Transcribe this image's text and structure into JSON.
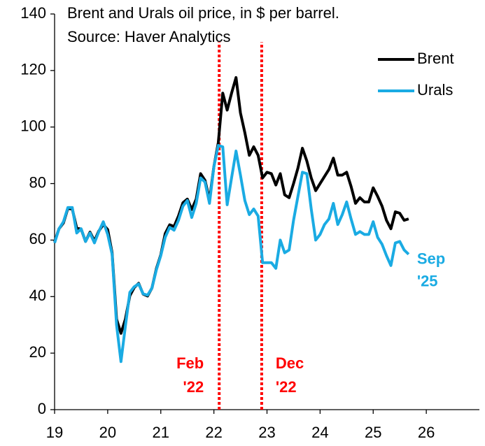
{
  "chart_data": {
    "type": "line",
    "title": "Brent and Urals oil price, in $ per barrel.",
    "subtitle": "Source: Haver Analytics",
    "x": [
      19,
      19.083,
      19.167,
      19.25,
      19.333,
      19.417,
      19.5,
      19.583,
      19.667,
      19.75,
      19.833,
      19.917,
      20,
      20.083,
      20.167,
      20.25,
      20.333,
      20.417,
      20.5,
      20.583,
      20.667,
      20.75,
      20.833,
      20.917,
      21,
      21.083,
      21.167,
      21.25,
      21.333,
      21.417,
      21.5,
      21.583,
      21.667,
      21.75,
      21.833,
      21.917,
      22,
      22.083,
      22.167,
      22.25,
      22.333,
      22.417,
      22.5,
      22.583,
      22.667,
      22.75,
      22.833,
      22.917,
      23,
      23.083,
      23.167,
      23.25,
      23.333,
      23.417,
      23.5,
      23.583,
      23.667,
      23.75,
      23.833,
      23.917,
      24,
      24.083,
      24.167,
      24.25,
      24.333,
      24.417,
      24.5,
      24.583,
      24.667,
      24.75,
      24.833,
      24.917,
      25,
      25.083,
      25.167,
      25.25,
      25.333,
      25.417,
      25.5,
      25.583,
      25.667
    ],
    "series": [
      {
        "name": "Brent",
        "color": "#000000",
        "values": [
          59.4,
          64,
          66.1,
          71.2,
          71,
          64.2,
          63.9,
          59.5,
          62.8,
          59.7,
          63.2,
          65.5,
          63.7,
          55.5,
          32,
          27,
          32,
          40.3,
          43.2,
          44.7,
          40.9,
          40.2,
          43,
          49.9,
          54.8,
          62.3,
          65.4,
          64.8,
          68.5,
          73.2,
          74.5,
          70.8,
          74.5,
          83.5,
          81.1,
          74.2,
          86,
          94.5,
          112,
          106,
          112,
          117.5,
          105,
          98,
          90,
          93,
          90,
          82,
          84,
          83.5,
          79.5,
          83.5,
          76,
          75,
          80,
          85.5,
          92.5,
          88,
          82,
          77.5,
          80,
          82.5,
          85,
          89,
          83,
          83,
          84,
          79,
          73,
          75,
          73.5,
          73.5,
          78.5,
          75.5,
          72,
          67,
          64,
          70,
          69.5,
          67,
          67.5
        ]
      },
      {
        "name": "Urals",
        "color": "#1aabe3",
        "end_label": [
          "Sep",
          "'25"
        ],
        "values": [
          59,
          64,
          66.5,
          71.5,
          71.5,
          62.5,
          64,
          59.5,
          62.5,
          59,
          63,
          66.5,
          62,
          55,
          30,
          17,
          29.5,
          41.5,
          43.5,
          44.5,
          41,
          40.5,
          43,
          49.5,
          54.5,
          61,
          64.5,
          63.5,
          67,
          72,
          74,
          68,
          73,
          82,
          80.5,
          73,
          86,
          93.5,
          93,
          72.5,
          82,
          91.5,
          83,
          74,
          69,
          71,
          68.5,
          52,
          52,
          52,
          50,
          60,
          55.5,
          56.5,
          67,
          75.5,
          84,
          83.5,
          71,
          60,
          62,
          65.5,
          67.5,
          73,
          65.5,
          69,
          73.5,
          67.5,
          62,
          63,
          62,
          62,
          66.5,
          61,
          58.5,
          54.5,
          51,
          59,
          59.5,
          56.5,
          55
        ]
      }
    ],
    "annotations": [
      {
        "x": 22.1,
        "text": [
          "Feb",
          "'22"
        ],
        "color": "#ff0000",
        "side": "left"
      },
      {
        "x": 22.9,
        "text": [
          "Dec",
          "'22"
        ],
        "color": "#ff0000",
        "side": "right"
      }
    ],
    "xlim": [
      19,
      27
    ],
    "xticks": [
      19,
      20,
      21,
      22,
      23,
      24,
      25,
      26
    ],
    "ylim": [
      0,
      140
    ],
    "yticks": [
      0,
      20,
      40,
      60,
      80,
      100,
      120,
      140
    ],
    "grid": false,
    "legend": "upper right"
  }
}
